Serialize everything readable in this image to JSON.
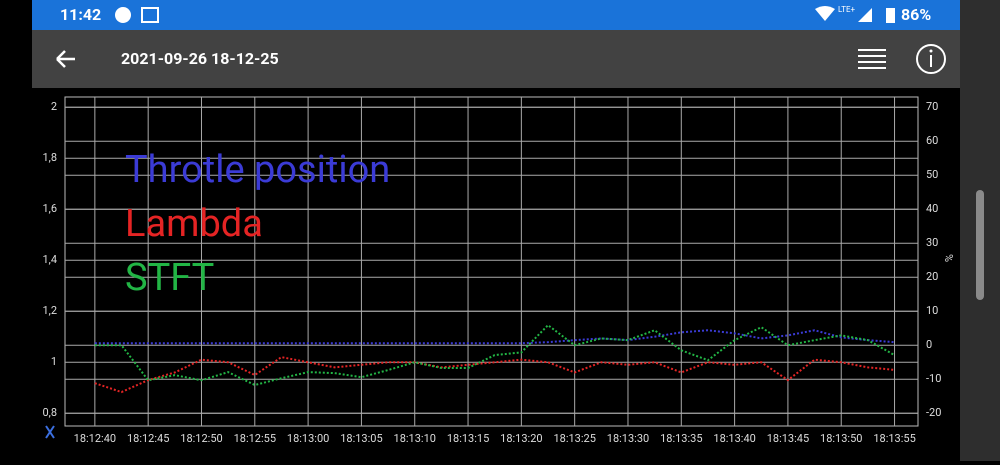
{
  "status_bar": {
    "time": "11:42",
    "network": "LTE+",
    "battery": "86%"
  },
  "app_bar": {
    "title": "2021-09-26 18-12-25"
  },
  "chart_data": {
    "type": "line",
    "line_style": "dotted",
    "grid": true,
    "legend": "upper left",
    "y2label": "%",
    "x": [
      0,
      2.5,
      5,
      7.5,
      10,
      12.5,
      15,
      17.5,
      20,
      22.5,
      25,
      27.5,
      30,
      32.5,
      35,
      37.5,
      40,
      42.5,
      45,
      47.5,
      50,
      52.5,
      55,
      57.5,
      60,
      62.5,
      65,
      67.5,
      70,
      72.5,
      75
    ],
    "xlim": [
      -2.8,
      77.2
    ],
    "xticks": [
      {
        "value": 0,
        "label": "18:12:40"
      },
      {
        "value": 5,
        "label": "18:12:45"
      },
      {
        "value": 10,
        "label": "18:12:50"
      },
      {
        "value": 15,
        "label": "18:12:55"
      },
      {
        "value": 20,
        "label": "18:13:00"
      },
      {
        "value": 25,
        "label": "18:13:05"
      },
      {
        "value": 30,
        "label": "18:13:10"
      },
      {
        "value": 35,
        "label": "18:13:15"
      },
      {
        "value": 40,
        "label": "18:13:20"
      },
      {
        "value": 45,
        "label": "18:13:25"
      },
      {
        "value": 50,
        "label": "18:13:30"
      },
      {
        "value": 55,
        "label": "18:13:35"
      },
      {
        "value": 60,
        "label": "18:13:40"
      },
      {
        "value": 65,
        "label": "18:13:45"
      },
      {
        "value": 70,
        "label": "18:13:50"
      },
      {
        "value": 75,
        "label": "18:13:55"
      }
    ],
    "ylim": [
      0.75,
      2.04
    ],
    "yticks": [
      {
        "value": 0.8,
        "label": "0,8"
      },
      1,
      {
        "value": 1.2,
        "label": "1,2"
      },
      {
        "value": 1.4,
        "label": "1,4"
      },
      {
        "value": 1.6,
        "label": "1,6"
      },
      {
        "value": 1.8,
        "label": "1,8"
      },
      2
    ],
    "y2lim": [
      -23.75,
      73
    ],
    "y2ticks": [
      -20,
      -10,
      0,
      10,
      20,
      30,
      40,
      50,
      60,
      70
    ],
    "series": [
      {
        "name": "Throtle position",
        "color": "#3b3bd6",
        "axis": "y2",
        "values": [
          0.6,
          0.6,
          0.6,
          0.6,
          0.6,
          0.6,
          0.6,
          0.6,
          0.6,
          0.6,
          0.6,
          0.6,
          0.6,
          0.6,
          0.6,
          0.6,
          0.6,
          0.9,
          1.5,
          2,
          1.5,
          2.5,
          3.8,
          4.4,
          3.5,
          2,
          2.9,
          4.4,
          2.3,
          1.5,
          0.9
        ]
      },
      {
        "name": "Lambda",
        "color": "#e52424",
        "values": [
          0.918,
          0.883,
          0.93,
          0.96,
          1.01,
          1.0,
          0.95,
          1.02,
          1.0,
          0.98,
          0.99,
          1.0,
          1.0,
          0.98,
          0.99,
          1.0,
          1.01,
          1.0,
          0.96,
          1.0,
          0.99,
          1.0,
          0.96,
          1.0,
          0.99,
          1.0,
          0.93,
          1.01,
          1.0,
          0.98,
          0.97
        ]
      },
      {
        "name": "STFT",
        "color": "#22b545",
        "axis": "y2",
        "values": [
          0,
          0,
          -10.3,
          -8.8,
          -10.3,
          -7.9,
          -11.7,
          -9.7,
          -7.9,
          -8.2,
          -9.4,
          -7.3,
          -5,
          -6.7,
          -6.7,
          -2.9,
          -2.1,
          5.9,
          0,
          2,
          1.5,
          4.4,
          -1.5,
          -4.4,
          1.5,
          5.3,
          0,
          1.5,
          2.9,
          1.5,
          -2.9
        ]
      }
    ]
  }
}
